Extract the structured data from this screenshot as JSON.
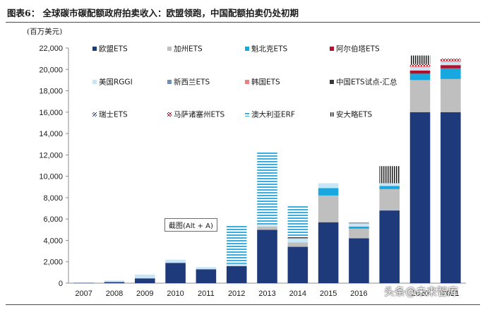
{
  "figure": {
    "title": "图表6： 全球碳市碳配额政府拍卖收入：欧盟领跑，中国配额拍卖仍处初期",
    "unit": "(百万美元)",
    "tooltip": "截图(Alt + A)",
    "watermark": "头条@未来智库"
  },
  "colors": {
    "eu": "#1f3a7a",
    "california": "#bfbfbf",
    "quebec": "#17a8e0",
    "alberta": "#b0102a",
    "rggi": "#c9e6f7",
    "nz": "#6f8fb8",
    "korea": "#f08080",
    "china": "#3a3a3a",
    "swiss": "#1f3a7a",
    "mass": "#b0102a",
    "australia": "#3aaee0",
    "ontario": "#1a1a1a"
  },
  "chart_data": {
    "type": "bar",
    "stacked": true,
    "categories": [
      "2007",
      "2008",
      "2009",
      "2010",
      "2011",
      "2012",
      "2013",
      "2014",
      "2015",
      "2016",
      "",
      "2020",
      "2021"
    ],
    "ylim": [
      0,
      22000
    ],
    "yticks": [
      "0",
      "2,000",
      "4,000",
      "6,000",
      "8,000",
      "10,000",
      "12,000",
      "14,000",
      "16,000",
      "18,000",
      "20,000",
      "22,000"
    ],
    "legend_position": "top-left",
    "series": [
      {
        "key": "eu",
        "name": "欧盟ETS",
        "pattern": "solid",
        "values": [
          30,
          100,
          450,
          1900,
          1300,
          1600,
          5000,
          3400,
          5700,
          4200,
          6800,
          16000,
          16000
        ]
      },
      {
        "key": "california",
        "name": "加州ETS",
        "pattern": "solid",
        "values": [
          0,
          0,
          0,
          0,
          0,
          0,
          300,
          400,
          2500,
          900,
          2000,
          3000,
          3100
        ]
      },
      {
        "key": "quebec",
        "name": "魁北克ETS",
        "pattern": "solid",
        "values": [
          0,
          0,
          0,
          0,
          0,
          0,
          0,
          0,
          700,
          200,
          300,
          600,
          1000
        ]
      },
      {
        "key": "alberta",
        "name": "阿尔伯塔ETS",
        "pattern": "solid",
        "values": [
          0,
          0,
          0,
          0,
          0,
          0,
          0,
          0,
          0,
          0,
          0,
          300,
          300
        ]
      },
      {
        "key": "rggi",
        "name": "美国RGGI",
        "pattern": "solid",
        "values": [
          0,
          150,
          350,
          300,
          200,
          200,
          150,
          400,
          450,
          300,
          250,
          300,
          300
        ]
      },
      {
        "key": "nz",
        "name": "新西兰ETS",
        "pattern": "solid",
        "values": [
          0,
          0,
          0,
          0,
          0,
          0,
          0,
          0,
          0,
          0,
          0,
          0,
          0
        ]
      },
      {
        "key": "korea",
        "name": "韩国ETS",
        "pattern": "solid",
        "values": [
          0,
          0,
          0,
          0,
          0,
          0,
          0,
          0,
          0,
          0,
          0,
          100,
          100
        ]
      },
      {
        "key": "china",
        "name": "中国ETS试点-汇总",
        "pattern": "solid",
        "values": [
          0,
          0,
          0,
          0,
          0,
          0,
          0,
          100,
          0,
          50,
          0,
          0,
          0
        ]
      },
      {
        "key": "swiss",
        "name": "瑞士ETS",
        "pattern": "diag",
        "values": [
          0,
          0,
          0,
          0,
          0,
          0,
          0,
          0,
          0,
          0,
          0,
          0,
          0
        ]
      },
      {
        "key": "mass",
        "name": "马萨诸塞州ETS",
        "pattern": "check",
        "values": [
          0,
          0,
          0,
          0,
          0,
          0,
          0,
          0,
          0,
          0,
          0,
          200,
          200
        ]
      },
      {
        "key": "australia",
        "name": "澳大利亚ERF",
        "pattern": "hstripe",
        "values": [
          0,
          0,
          0,
          0,
          0,
          3600,
          6900,
          2900,
          0,
          0,
          0,
          0,
          0
        ]
      },
      {
        "key": "ontario",
        "name": "安大略ETS",
        "pattern": "vstripe",
        "values": [
          0,
          0,
          0,
          0,
          0,
          0,
          0,
          0,
          0,
          0,
          1600,
          800,
          0
        ]
      }
    ]
  }
}
